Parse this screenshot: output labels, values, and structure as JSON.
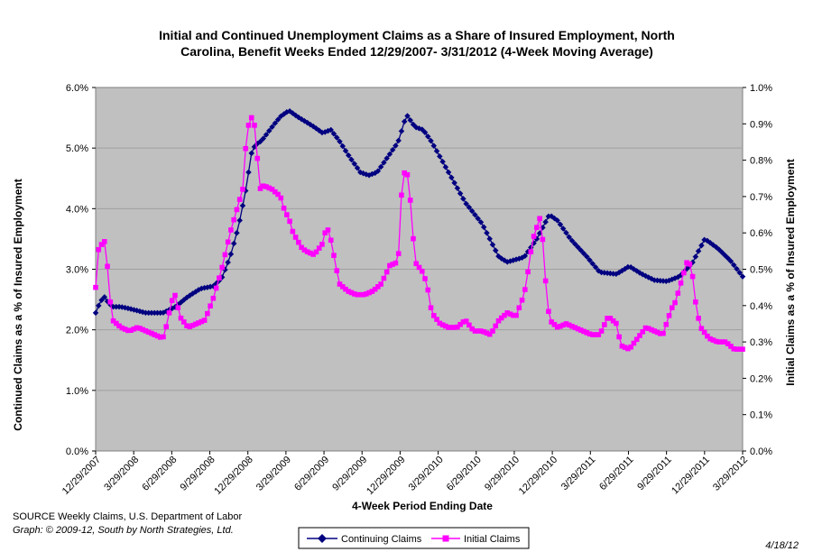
{
  "chart_data": {
    "type": "line",
    "title_line1": "Initial and Continued Unemployment Claims as a Share of Insured Employment, North",
    "title_line2": "Carolina, Benefit Weeks Ended 12/29/2007- 3/31/2012 (4-Week Moving Average)",
    "xlabel": "4-Week Period Ending Date",
    "ylabel_left": "Continued Claims as a % of Insured Employment",
    "ylabel_right": "Initial Claims as a % of Insured Employment",
    "x_ticks": [
      "12/29/2007",
      "3/29/2008",
      "6/29/2008",
      "9/29/2008",
      "12/29/2008",
      "3/29/2009",
      "6/29/2009",
      "9/29/2009",
      "12/29/2009",
      "3/29/2010",
      "6/29/2010",
      "9/29/2010",
      "12/29/2010",
      "3/29/2011",
      "6/29/2011",
      "9/29/2011",
      "12/29/2011",
      "3/29/2012"
    ],
    "y_left_ticks": [
      "0.0%",
      "1.0%",
      "2.0%",
      "3.0%",
      "4.0%",
      "5.0%",
      "6.0%"
    ],
    "y_right_ticks": [
      "0.0%",
      "0.1%",
      "0.2%",
      "0.3%",
      "0.4%",
      "0.5%",
      "0.6%",
      "0.7%",
      "0.8%",
      "0.9%",
      "1.0%"
    ],
    "y_left_range": [
      0,
      6
    ],
    "y_right_range": [
      0,
      1
    ],
    "x_range_weeks": [
      0,
      222
    ],
    "background_color": "#c0c0c0",
    "series": [
      {
        "name": "Continuing Claims",
        "axis": "left",
        "color": "#000080",
        "marker": "diamond",
        "keypoints": [
          [
            0,
            2.28
          ],
          [
            2,
            2.45
          ],
          [
            4,
            2.55
          ],
          [
            6,
            2.45
          ],
          [
            8,
            2.38
          ],
          [
            12,
            2.38
          ],
          [
            16,
            2.35
          ],
          [
            24,
            2.28
          ],
          [
            32,
            2.28
          ],
          [
            38,
            2.38
          ],
          [
            44,
            2.55
          ],
          [
            50,
            2.68
          ],
          [
            56,
            2.72
          ],
          [
            60,
            2.85
          ],
          [
            64,
            3.2
          ],
          [
            68,
            3.7
          ],
          [
            72,
            4.4
          ],
          [
            74,
            4.9
          ],
          [
            76,
            5.05
          ],
          [
            79,
            5.12
          ],
          [
            84,
            5.35
          ],
          [
            88,
            5.52
          ],
          [
            92,
            5.62
          ],
          [
            96,
            5.52
          ],
          [
            104,
            5.35
          ],
          [
            108,
            5.25
          ],
          [
            112,
            5.3
          ],
          [
            116,
            5.12
          ],
          [
            120,
            4.9
          ],
          [
            126,
            4.6
          ],
          [
            130,
            4.55
          ],
          [
            134,
            4.6
          ],
          [
            140,
            4.9
          ],
          [
            144,
            5.1
          ],
          [
            148,
            5.55
          ],
          [
            152,
            5.35
          ],
          [
            156,
            5.3
          ],
          [
            160,
            5.1
          ],
          [
            168,
            4.6
          ],
          [
            176,
            4.1
          ],
          [
            184,
            3.75
          ],
          [
            192,
            3.2
          ],
          [
            196,
            3.12
          ],
          [
            204,
            3.2
          ],
          [
            210,
            3.5
          ],
          [
            216,
            3.9
          ],
          [
            220,
            3.8
          ],
          [
            226,
            3.5
          ],
          [
            234,
            3.2
          ],
          [
            240,
            2.95
          ],
          [
            248,
            2.92
          ],
          [
            254,
            3.05
          ],
          [
            260,
            2.92
          ],
          [
            266,
            2.82
          ],
          [
            272,
            2.8
          ],
          [
            278,
            2.88
          ],
          [
            284,
            3.1
          ],
          [
            290,
            3.5
          ],
          [
            296,
            3.35
          ],
          [
            302,
            3.15
          ],
          [
            308,
            2.88
          ]
        ]
      },
      {
        "name": "Initial Claims",
        "axis": "right",
        "color": "#ff00ff",
        "marker": "square",
        "keypoints": [
          [
            0,
            0.45
          ],
          [
            1,
            0.55
          ],
          [
            3,
            0.57
          ],
          [
            5,
            0.58
          ],
          [
            6,
            0.46
          ],
          [
            8,
            0.36
          ],
          [
            12,
            0.34
          ],
          [
            16,
            0.33
          ],
          [
            20,
            0.34
          ],
          [
            24,
            0.33
          ],
          [
            28,
            0.32
          ],
          [
            32,
            0.31
          ],
          [
            34,
            0.35
          ],
          [
            36,
            0.41
          ],
          [
            38,
            0.43
          ],
          [
            40,
            0.37
          ],
          [
            44,
            0.34
          ],
          [
            48,
            0.35
          ],
          [
            52,
            0.36
          ],
          [
            56,
            0.42
          ],
          [
            60,
            0.5
          ],
          [
            64,
            0.6
          ],
          [
            68,
            0.68
          ],
          [
            70,
            0.72
          ],
          [
            72,
            0.88
          ],
          [
            74,
            0.92
          ],
          [
            76,
            0.89
          ],
          [
            78,
            0.72
          ],
          [
            80,
            0.73
          ],
          [
            84,
            0.72
          ],
          [
            88,
            0.7
          ],
          [
            90,
            0.66
          ],
          [
            92,
            0.64
          ],
          [
            94,
            0.6
          ],
          [
            98,
            0.56
          ],
          [
            100,
            0.55
          ],
          [
            104,
            0.54
          ],
          [
            108,
            0.57
          ],
          [
            110,
            0.62
          ],
          [
            112,
            0.58
          ],
          [
            114,
            0.52
          ],
          [
            116,
            0.46
          ],
          [
            120,
            0.44
          ],
          [
            124,
            0.43
          ],
          [
            128,
            0.43
          ],
          [
            132,
            0.44
          ],
          [
            136,
            0.46
          ],
          [
            140,
            0.51
          ],
          [
            144,
            0.52
          ],
          [
            146,
            0.75
          ],
          [
            148,
            0.78
          ],
          [
            150,
            0.68
          ],
          [
            152,
            0.52
          ],
          [
            156,
            0.49
          ],
          [
            158,
            0.45
          ],
          [
            160,
            0.38
          ],
          [
            164,
            0.35
          ],
          [
            168,
            0.34
          ],
          [
            172,
            0.34
          ],
          [
            176,
            0.36
          ],
          [
            180,
            0.33
          ],
          [
            184,
            0.33
          ],
          [
            188,
            0.32
          ],
          [
            192,
            0.36
          ],
          [
            196,
            0.38
          ],
          [
            200,
            0.37
          ],
          [
            204,
            0.43
          ],
          [
            206,
            0.5
          ],
          [
            208,
            0.58
          ],
          [
            212,
            0.65
          ],
          [
            214,
            0.48
          ],
          [
            216,
            0.36
          ],
          [
            220,
            0.34
          ],
          [
            224,
            0.35
          ],
          [
            228,
            0.34
          ],
          [
            232,
            0.33
          ],
          [
            236,
            0.32
          ],
          [
            240,
            0.32
          ],
          [
            244,
            0.37
          ],
          [
            248,
            0.35
          ],
          [
            250,
            0.29
          ],
          [
            254,
            0.28
          ],
          [
            258,
            0.31
          ],
          [
            262,
            0.34
          ],
          [
            266,
            0.33
          ],
          [
            270,
            0.32
          ],
          [
            274,
            0.39
          ],
          [
            276,
            0.41
          ],
          [
            278,
            0.45
          ],
          [
            280,
            0.49
          ],
          [
            282,
            0.53
          ],
          [
            284,
            0.49
          ],
          [
            286,
            0.39
          ],
          [
            288,
            0.34
          ],
          [
            292,
            0.31
          ],
          [
            296,
            0.3
          ],
          [
            300,
            0.3
          ],
          [
            304,
            0.28
          ]
        ]
      }
    ]
  },
  "legend": {
    "continuing_label": "Continuing Claims",
    "initial_label": "Initial Claims"
  },
  "footer": {
    "source_line": "SOURCE  Weekly Claims, U.S. Department of Labor",
    "graph_credit": "Graph: © 2009-12, South by North Strategies, Ltd.",
    "date_stamp": "4/18/12"
  }
}
